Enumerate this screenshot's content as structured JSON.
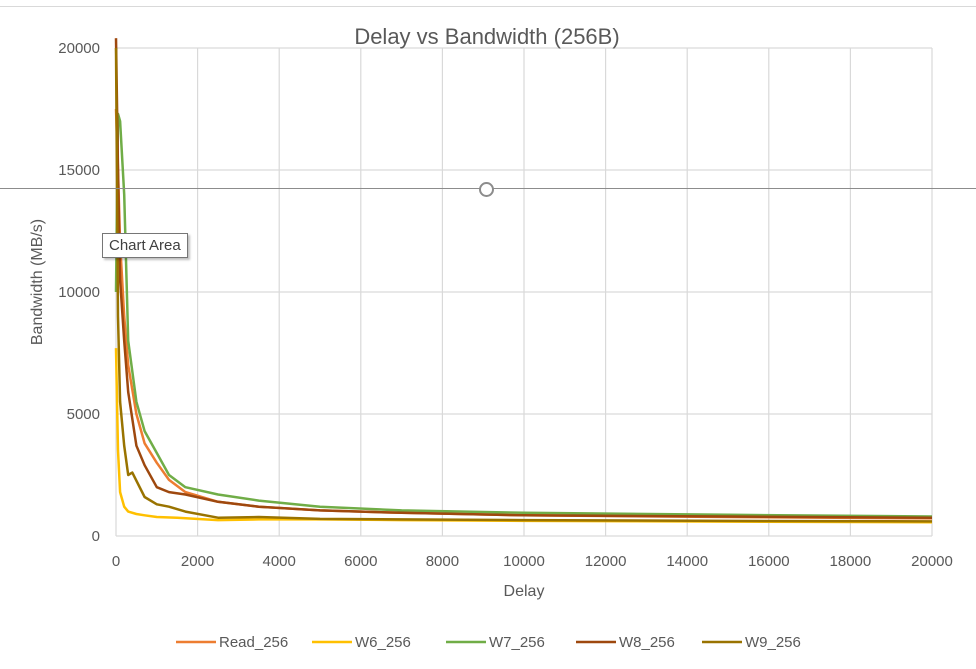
{
  "chart_data": {
    "type": "line",
    "title": "Delay vs Bandwidth (256B)",
    "xlabel": "Delay",
    "ylabel": "Bandwidth (MB/s)",
    "xlim": [
      0,
      20000
    ],
    "ylim": [
      0,
      20000
    ],
    "xticks": [
      0,
      2000,
      4000,
      6000,
      8000,
      10000,
      12000,
      14000,
      16000,
      18000,
      20000
    ],
    "yticks": [
      0,
      5000,
      10000,
      15000,
      20000
    ],
    "grid": true,
    "legend": "bottom",
    "series": [
      {
        "name": "Read_256",
        "color": "#ED7D31",
        "x": [
          0,
          50,
          100,
          200,
          300,
          500,
          700,
          1000,
          1300,
          1700,
          2500,
          3500,
          5000,
          7000,
          10000,
          15000,
          20000
        ],
        "y": [
          17500,
          15000,
          12000,
          9000,
          7000,
          5000,
          3800,
          3000,
          2300,
          1800,
          1400,
          1200,
          1050,
          950,
          850,
          780,
          720
        ]
      },
      {
        "name": "W6_256",
        "color": "#FFC000",
        "x": [
          0,
          50,
          100,
          200,
          300,
          500,
          700,
          1000,
          1500,
          2500,
          3500,
          5000,
          7000,
          10000,
          15000,
          20000
        ],
        "y": [
          7700,
          3500,
          1800,
          1200,
          1000,
          900,
          850,
          780,
          750,
          650,
          680,
          680,
          650,
          620,
          590,
          560
        ]
      },
      {
        "name": "W7_256",
        "color": "#70AD47",
        "x": [
          0,
          50,
          100,
          200,
          300,
          500,
          700,
          1000,
          1300,
          1700,
          2500,
          3500,
          5000,
          7000,
          10000,
          15000,
          20000
        ],
        "y": [
          10000,
          17300,
          17000,
          14000,
          8000,
          5500,
          4300,
          3400,
          2500,
          2000,
          1700,
          1450,
          1200,
          1050,
          950,
          870,
          800
        ]
      },
      {
        "name": "W8_256",
        "color": "#9E480E",
        "x": [
          0,
          50,
          100,
          200,
          300,
          500,
          700,
          1000,
          1300,
          1700,
          2500,
          3500,
          5000,
          7000,
          10000,
          15000,
          20000
        ],
        "y": [
          20400,
          15000,
          10500,
          8000,
          5900,
          3700,
          2900,
          2000,
          1800,
          1700,
          1400,
          1200,
          1050,
          950,
          850,
          800,
          750
        ]
      },
      {
        "name": "W9_256",
        "color": "#997300",
        "x": [
          0,
          50,
          100,
          200,
          300,
          400,
          700,
          1000,
          1300,
          1700,
          2500,
          3500,
          5000,
          7000,
          10000,
          15000,
          20000
        ],
        "y": [
          20000,
          9000,
          5500,
          3700,
          2500,
          2600,
          1600,
          1300,
          1200,
          1000,
          750,
          780,
          700,
          680,
          650,
          620,
          600
        ]
      }
    ]
  },
  "overlay": {
    "tooltip": "Chart Area"
  },
  "colors": {
    "grid": "#D9D9D9",
    "text": "#595959"
  }
}
